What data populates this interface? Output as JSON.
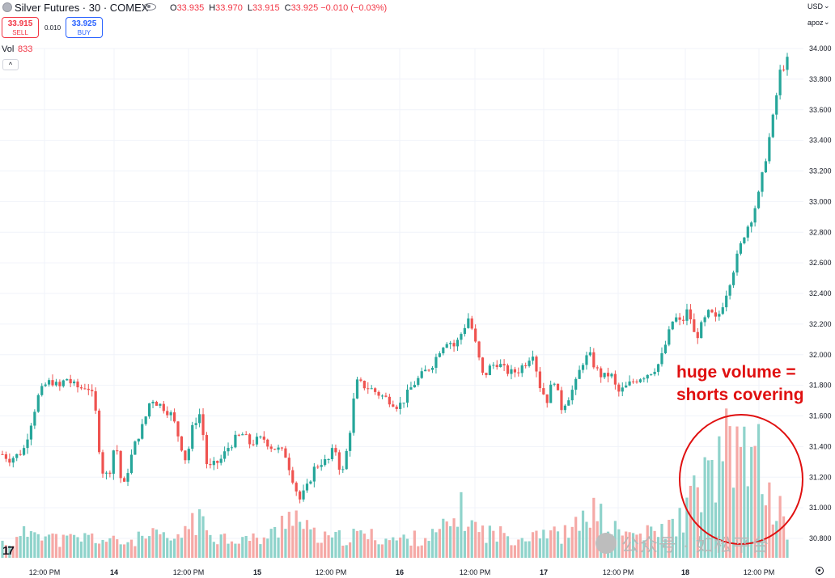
{
  "header": {
    "title": "Silver Futures · 30 · COMEX",
    "ohlc": [
      {
        "key": "O",
        "value": "33.935"
      },
      {
        "key": "H",
        "value": "33.970"
      },
      {
        "key": "L",
        "value": "33.915"
      },
      {
        "key": "C",
        "value": "33.925 −0.010 (−0.03%)"
      }
    ]
  },
  "trade": {
    "sell_price": "33.915",
    "sell_label": "SELL",
    "spread": "0.010",
    "buy_price": "33.925",
    "buy_label": "BUY"
  },
  "volume_legend": {
    "label": "Vol",
    "value": "833"
  },
  "price_scale": {
    "currency": "USD",
    "mode": "apoz"
  },
  "annotation": "huge volume =\nshorts covering",
  "watermark": "公众号 · 如松平台",
  "colors": {
    "up": "#26a69a",
    "down": "#ef5350",
    "up_volume": "#8fd3cb",
    "down_volume": "#f5a9a6",
    "annotation": "#e01010"
  },
  "icons": [
    "symbol-logo-icon",
    "eye-icon",
    "collapse-caret-icon",
    "tradingview-logo-icon",
    "gear-icon",
    "watermark-wechat-icon"
  ],
  "chart_data": {
    "type": "candlestick",
    "title": "Silver Futures · 30 · COMEX",
    "ylim": [
      30.72,
      34.06
    ],
    "y_ticks": [
      "34.000",
      "33.800",
      "33.600",
      "33.400",
      "33.200",
      "33.000",
      "32.800",
      "32.600",
      "32.400",
      "32.200",
      "32.000",
      "31.800",
      "31.600",
      "31.400",
      "31.200",
      "31.000",
      "30.800"
    ],
    "x_tick_labels": [
      "12:00 PM",
      "14",
      "12:00 PM",
      "15",
      "12:00 PM",
      "16",
      "12:00 PM",
      "17",
      "12:00 PM",
      "18",
      "12:00 PM"
    ],
    "price_path": [
      31.35,
      31.32,
      31.34,
      31.38,
      31.55,
      31.72,
      31.8,
      31.83,
      31.78,
      31.85,
      31.8,
      31.78,
      31.8,
      31.7,
      31.25,
      31.2,
      31.45,
      31.1,
      31.3,
      31.45,
      31.55,
      31.72,
      31.68,
      31.65,
      31.6,
      31.45,
      31.3,
      31.55,
      31.62,
      31.25,
      31.28,
      31.32,
      31.4,
      31.45,
      31.48,
      31.42,
      31.44,
      31.45,
      31.4,
      31.38,
      31.35,
      31.2,
      31.05,
      31.12,
      31.25,
      31.3,
      31.3,
      31.4,
      31.2,
      31.45,
      31.82,
      31.8,
      31.78,
      31.75,
      31.72,
      31.7,
      31.66,
      31.72,
      31.8,
      31.85,
      31.9,
      31.95,
      32.05,
      32.1,
      32.05,
      32.15,
      32.25,
      32.05,
      31.85,
      31.92,
      31.95,
      31.9,
      31.88,
      31.9,
      31.95,
      32.02,
      31.8,
      31.7,
      31.85,
      31.65,
      31.72,
      31.8,
      31.95,
      32.0,
      31.9,
      31.85,
      31.88,
      31.75,
      31.78,
      31.82,
      31.85,
      31.87,
      31.9,
      31.95,
      32.1,
      32.25,
      32.2,
      32.3,
      32.1,
      32.2,
      32.28,
      32.22,
      32.35,
      32.5,
      32.65,
      32.8,
      32.9,
      33.05,
      33.3,
      33.55,
      33.85,
      33.92
    ],
    "volume": [
      220,
      230,
      240,
      330,
      400,
      520,
      330,
      300,
      250,
      260,
      270,
      280,
      300,
      290,
      260,
      250,
      230,
      220,
      240,
      270,
      280,
      300,
      320,
      280,
      260,
      250,
      480,
      560,
      500,
      420,
      360,
      300,
      290,
      290,
      280,
      270,
      260,
      290,
      330,
      380,
      650,
      700,
      520,
      410,
      330,
      280,
      270,
      280,
      290,
      300,
      320,
      340,
      310,
      300,
      280,
      270,
      260,
      270,
      280,
      290,
      300,
      320,
      390,
      450,
      560,
      690,
      520,
      420,
      380,
      360,
      340,
      330,
      310,
      300,
      320,
      380,
      420,
      380,
      340,
      330,
      360,
      420,
      520,
      690,
      650,
      520,
      420,
      380,
      350,
      340,
      330,
      340,
      350,
      380,
      420,
      480,
      560,
      760,
      900,
      1130,
      1130,
      1250,
      1650,
      1380,
      1470,
      1900,
      1250,
      1430,
      980,
      760,
      640,
      400
    ]
  }
}
